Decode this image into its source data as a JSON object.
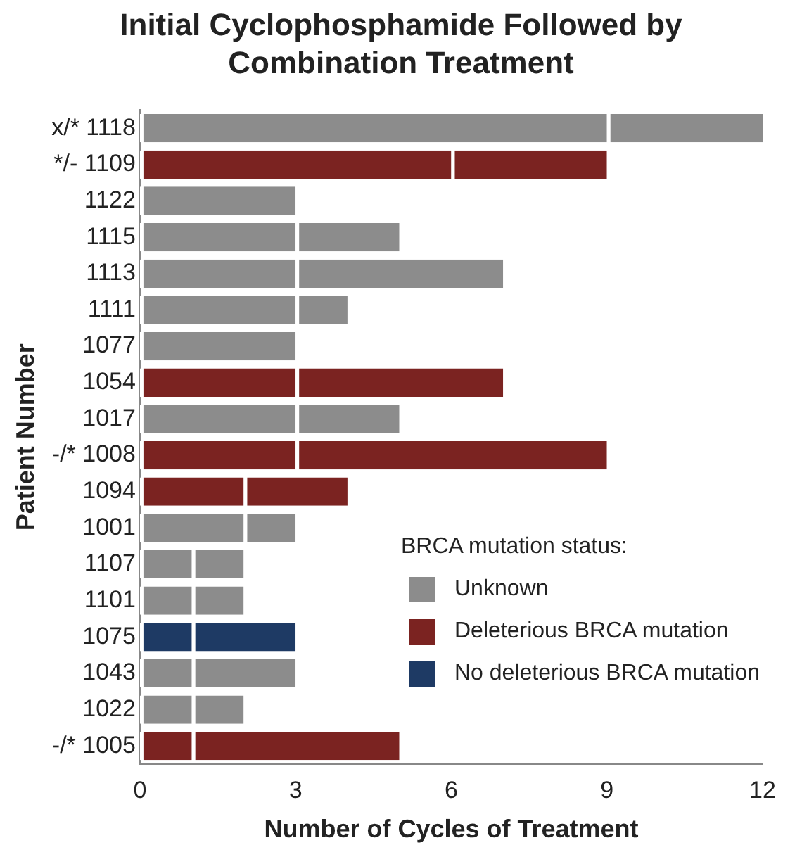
{
  "chart_data": {
    "type": "bar",
    "title": "Initial Cyclophosphamide Followed by Combination Treatment",
    "ylabel": "Patient Number",
    "xlabel": "Number of Cycles of Treatment",
    "orientation": "horizontal",
    "stacked": true,
    "legend": "bottom right",
    "legend_title": "BRCA mutation status:",
    "grid": false,
    "xlim": [
      0,
      12
    ],
    "xticks": [
      0,
      3,
      6,
      9,
      12
    ],
    "categories": [
      "x/* 1118",
      "*/- 1109",
      "1122",
      "1115",
      "1113",
      "1111",
      "1077",
      "1054",
      "1017",
      "-/* 1008",
      "1094",
      "1001",
      "1107",
      "1101",
      "1075",
      "1043",
      "1022",
      "-/* 1005"
    ],
    "series": [
      {
        "name": "Unknown",
        "color": "#8c8c8c",
        "values": [
          9,
          null,
          3,
          3,
          3,
          3,
          3,
          null,
          3,
          null,
          null,
          2,
          1,
          1,
          null,
          1,
          1,
          null
        ]
      },
      {
        "name": "Deleterious BRCA mutation",
        "color": "#7b2321",
        "values": [
          null,
          6,
          null,
          null,
          null,
          null,
          null,
          3,
          null,
          3,
          2,
          null,
          null,
          null,
          null,
          null,
          null,
          1
        ]
      },
      {
        "name": "No deleterious BRCA mutation",
        "color": "#1e3a64",
        "values": [
          null,
          null,
          null,
          null,
          null,
          null,
          null,
          null,
          null,
          null,
          null,
          null,
          null,
          null,
          1,
          null,
          null,
          null
        ]
      },
      {
        "color": "#8c8c8c",
        "values": [
          3,
          null,
          null,
          2,
          4,
          1,
          null,
          null,
          2,
          null,
          null,
          1,
          1,
          1,
          null,
          2,
          1,
          null
        ]
      },
      {
        "color": "#7b2321",
        "values": [
          null,
          3,
          null,
          null,
          null,
          null,
          null,
          4,
          null,
          6,
          2,
          null,
          null,
          null,
          null,
          null,
          null,
          4
        ]
      },
      {
        "color": "#1e3a64",
        "values": [
          null,
          null,
          null,
          null,
          null,
          null,
          null,
          null,
          null,
          null,
          null,
          null,
          null,
          null,
          2,
          null,
          null,
          null
        ]
      }
    ]
  }
}
